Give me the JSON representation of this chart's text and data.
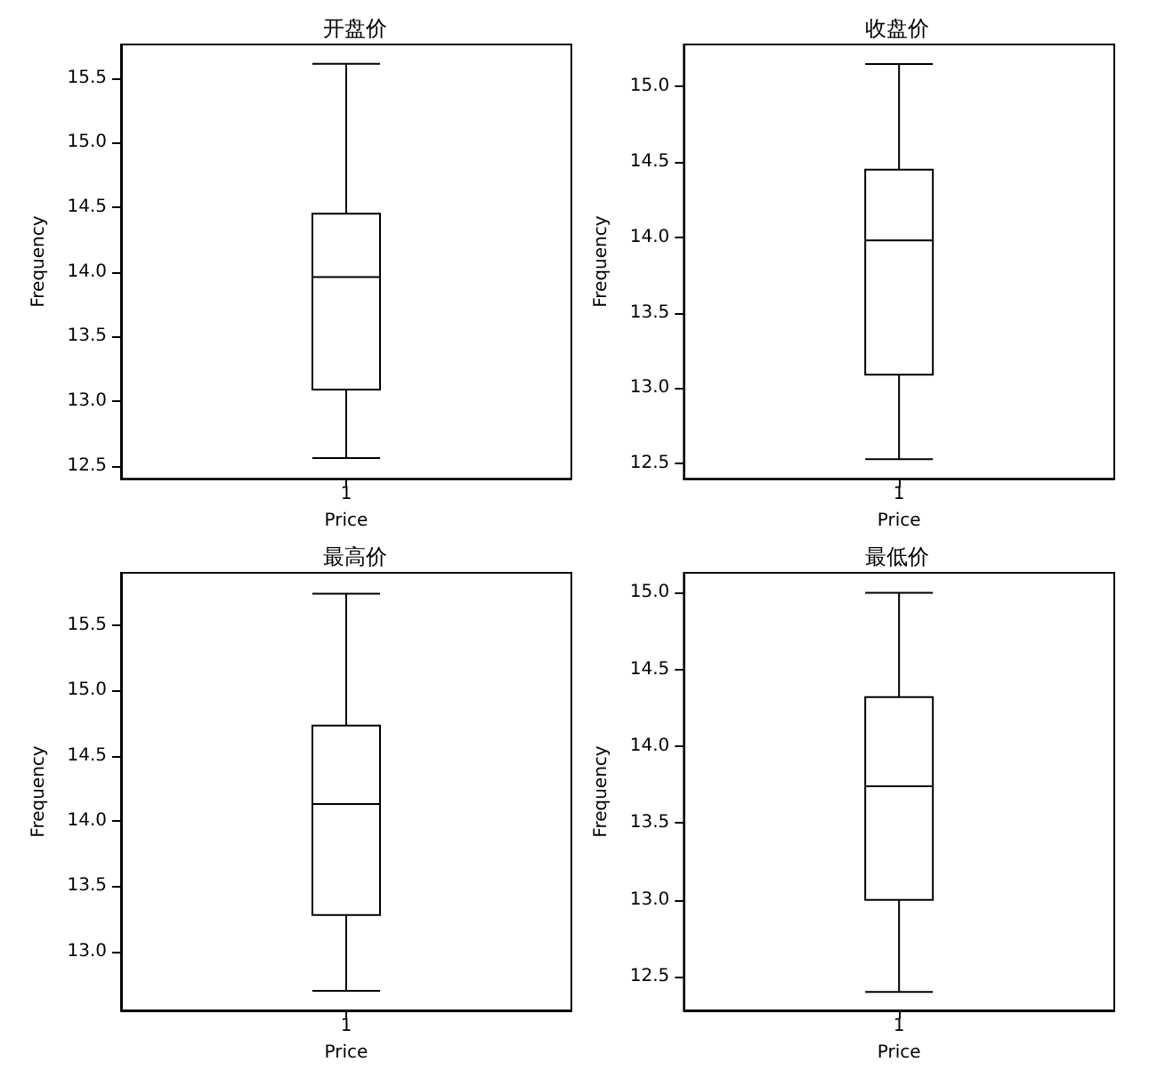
{
  "chart_data": [
    {
      "type": "box",
      "title": "开盘价",
      "xlabel": "Price",
      "ylabel": "Frequency",
      "categories": [
        "1"
      ],
      "color": "#000000",
      "grid": false,
      "boxes": [
        {
          "low": 12.56,
          "q1": 13.09,
          "median": 13.96,
          "q3": 14.45,
          "high": 15.61
        }
      ],
      "ylim": [
        12.4,
        15.76
      ],
      "yticks": [
        {
          "value": 12.5,
          "label": "12.5"
        },
        {
          "value": 13,
          "label": "13.0"
        },
        {
          "value": 13.5,
          "label": "13.5"
        },
        {
          "value": 14,
          "label": "14.0"
        },
        {
          "value": 14.5,
          "label": "14.5"
        },
        {
          "value": 15,
          "label": "15.0"
        },
        {
          "value": 15.5,
          "label": "15.5"
        }
      ]
    },
    {
      "type": "box",
      "title": "收盘价",
      "xlabel": "Price",
      "ylabel": "Frequency",
      "categories": [
        "1"
      ],
      "color": "#000000",
      "grid": false,
      "boxes": [
        {
          "low": 12.53,
          "q1": 13.09,
          "median": 13.98,
          "q3": 14.45,
          "high": 15.15
        }
      ],
      "ylim": [
        12.4,
        15.28
      ],
      "yticks": [
        {
          "value": 12.5,
          "label": "12.5"
        },
        {
          "value": 13,
          "label": "13.0"
        },
        {
          "value": 13.5,
          "label": "13.5"
        },
        {
          "value": 14,
          "label": "14.0"
        },
        {
          "value": 14.5,
          "label": "14.5"
        },
        {
          "value": 15,
          "label": "15.0"
        }
      ]
    },
    {
      "type": "box",
      "title": "最高价",
      "xlabel": "Price",
      "ylabel": "Frequency",
      "categories": [
        "1"
      ],
      "color": "#000000",
      "grid": false,
      "boxes": [
        {
          "low": 12.7,
          "q1": 13.28,
          "median": 14.13,
          "q3": 14.73,
          "high": 15.74
        }
      ],
      "ylim": [
        12.55,
        15.9
      ],
      "yticks": [
        {
          "value": 13,
          "label": "13.0"
        },
        {
          "value": 13.5,
          "label": "13.5"
        },
        {
          "value": 14,
          "label": "14.0"
        },
        {
          "value": 14.5,
          "label": "14.5"
        },
        {
          "value": 15,
          "label": "15.0"
        },
        {
          "value": 15.5,
          "label": "15.5"
        }
      ]
    },
    {
      "type": "box",
      "title": "最低价",
      "xlabel": "Price",
      "ylabel": "Frequency",
      "categories": [
        "1"
      ],
      "color": "#000000",
      "grid": false,
      "boxes": [
        {
          "low": 12.4,
          "q1": 13.0,
          "median": 13.74,
          "q3": 14.32,
          "high": 15.0
        }
      ],
      "ylim": [
        12.28,
        15.13
      ],
      "yticks": [
        {
          "value": 12.5,
          "label": "12.5"
        },
        {
          "value": 13,
          "label": "13.0"
        },
        {
          "value": 13.5,
          "label": "13.5"
        },
        {
          "value": 14,
          "label": "14.0"
        },
        {
          "value": 14.5,
          "label": "14.5"
        },
        {
          "value": 15,
          "label": "15.0"
        }
      ]
    }
  ]
}
